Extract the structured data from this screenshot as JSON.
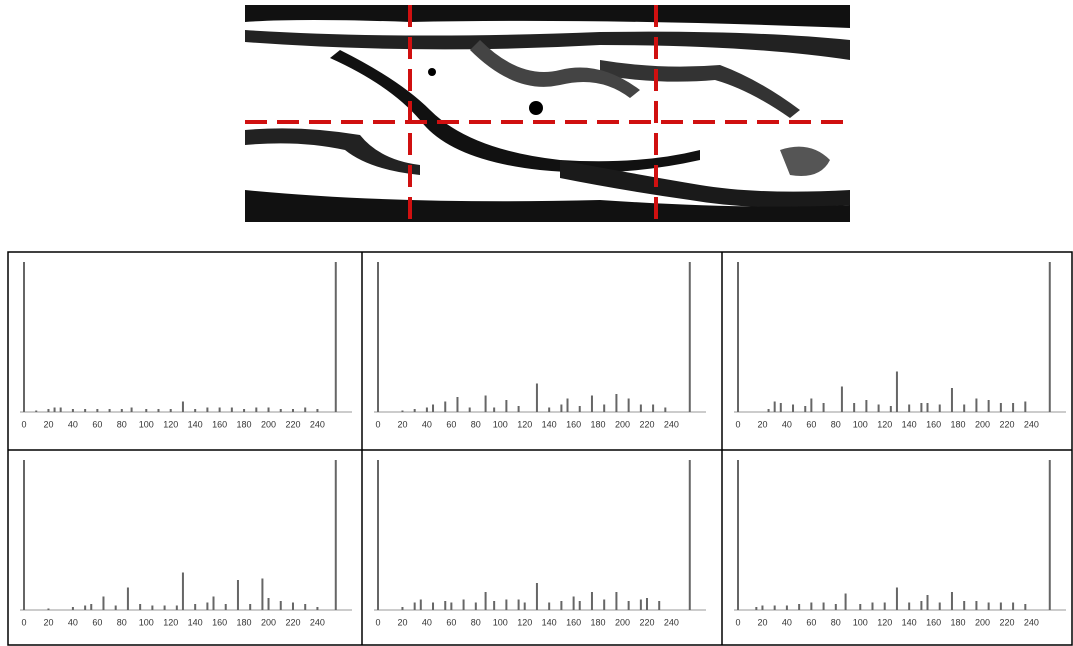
{
  "chart_data": [
    {
      "type": "bar",
      "color": "#666",
      "xlim": [
        0,
        265
      ],
      "xticks": [
        0,
        20,
        40,
        60,
        80,
        100,
        120,
        140,
        160,
        180,
        200,
        220,
        240
      ],
      "x": [
        0,
        10,
        20,
        25,
        30,
        40,
        50,
        60,
        70,
        80,
        88,
        100,
        110,
        120,
        130,
        140,
        150,
        160,
        170,
        180,
        190,
        200,
        210,
        220,
        230,
        240,
        255
      ],
      "values": [
        100,
        1,
        2,
        3,
        3,
        2,
        2,
        2,
        2,
        2,
        3,
        2,
        2,
        2,
        7,
        2,
        3,
        3,
        3,
        2,
        3,
        3,
        2,
        2,
        3,
        2,
        100
      ]
    },
    {
      "type": "bar",
      "color": "#666",
      "xlim": [
        0,
        265
      ],
      "xticks": [
        0,
        20,
        40,
        60,
        80,
        100,
        120,
        140,
        160,
        180,
        200,
        220,
        240
      ],
      "x": [
        0,
        20,
        30,
        40,
        45,
        55,
        65,
        75,
        88,
        95,
        105,
        115,
        130,
        140,
        150,
        155,
        165,
        175,
        185,
        195,
        205,
        215,
        225,
        235,
        255
      ],
      "values": [
        100,
        1,
        2,
        3,
        5,
        7,
        10,
        3,
        11,
        3,
        8,
        4,
        19,
        3,
        5,
        9,
        4,
        11,
        5,
        12,
        9,
        5,
        5,
        3,
        100
      ]
    },
    {
      "type": "bar",
      "color": "#666",
      "xlim": [
        0,
        265
      ],
      "xticks": [
        0,
        20,
        40,
        60,
        80,
        100,
        120,
        140,
        160,
        180,
        200,
        220,
        240
      ],
      "x": [
        0,
        25,
        30,
        35,
        45,
        55,
        60,
        70,
        85,
        95,
        105,
        115,
        125,
        130,
        140,
        150,
        155,
        165,
        175,
        185,
        195,
        205,
        215,
        225,
        235,
        255
      ],
      "values": [
        100,
        2,
        7,
        6,
        5,
        4,
        9,
        6,
        17,
        6,
        8,
        5,
        4,
        27,
        5,
        6,
        6,
        5,
        16,
        5,
        9,
        8,
        6,
        6,
        7,
        100
      ]
    },
    {
      "type": "bar",
      "color": "#666",
      "xlim": [
        0,
        265
      ],
      "xticks": [
        0,
        20,
        40,
        60,
        80,
        100,
        120,
        140,
        160,
        180,
        200,
        220,
        240
      ],
      "x": [
        0,
        20,
        40,
        50,
        55,
        65,
        75,
        85,
        95,
        105,
        115,
        125,
        130,
        140,
        150,
        155,
        165,
        175,
        185,
        195,
        200,
        210,
        220,
        230,
        240,
        255
      ],
      "values": [
        100,
        1,
        2,
        3,
        4,
        9,
        3,
        15,
        4,
        3,
        3,
        3,
        25,
        4,
        5,
        9,
        4,
        20,
        4,
        21,
        8,
        6,
        5,
        4,
        2,
        100
      ]
    },
    {
      "type": "bar",
      "color": "#666",
      "xlim": [
        0,
        265
      ],
      "xticks": [
        0,
        20,
        40,
        60,
        80,
        100,
        120,
        140,
        160,
        180,
        200,
        220,
        240
      ],
      "x": [
        0,
        20,
        30,
        35,
        45,
        55,
        60,
        70,
        80,
        88,
        95,
        105,
        115,
        120,
        130,
        140,
        150,
        160,
        165,
        175,
        185,
        195,
        205,
        215,
        220,
        230,
        255
      ],
      "values": [
        100,
        2,
        5,
        7,
        5,
        6,
        5,
        7,
        5,
        12,
        6,
        7,
        7,
        5,
        18,
        5,
        6,
        9,
        6,
        12,
        7,
        12,
        6,
        7,
        8,
        6,
        100
      ]
    },
    {
      "type": "bar",
      "color": "#666",
      "xlim": [
        0,
        265
      ],
      "xticks": [
        0,
        20,
        40,
        60,
        80,
        100,
        120,
        140,
        160,
        180,
        200,
        220,
        240
      ],
      "x": [
        0,
        15,
        20,
        30,
        40,
        50,
        60,
        70,
        80,
        88,
        100,
        110,
        120,
        130,
        140,
        150,
        155,
        165,
        175,
        185,
        195,
        205,
        215,
        225,
        235,
        255
      ],
      "values": [
        100,
        2,
        3,
        3,
        3,
        4,
        5,
        5,
        4,
        11,
        4,
        5,
        5,
        15,
        5,
        6,
        10,
        5,
        12,
        6,
        6,
        5,
        5,
        5,
        4,
        100
      ]
    }
  ]
}
